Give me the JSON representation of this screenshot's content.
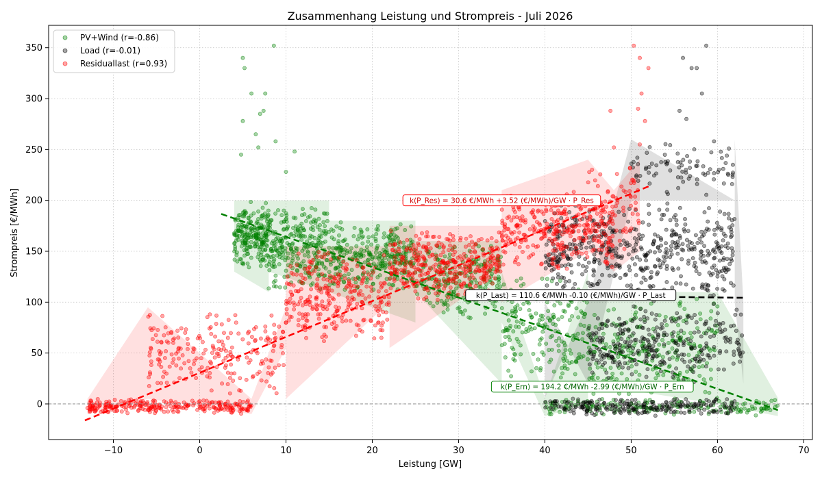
{
  "chart_data": {
    "type": "scatter",
    "title": "Zusammenhang Leistung und Strompreis - Juli 2026",
    "xlabel": "Leistung [GW]",
    "ylabel": "Strompreis [€/MWh]",
    "xlim": [
      -17.5,
      71.0
    ],
    "ylim": [
      -35,
      372
    ],
    "xticks": [
      -10,
      0,
      10,
      20,
      30,
      40,
      50,
      60,
      70
    ],
    "yticks": [
      0,
      50,
      100,
      150,
      200,
      250,
      300,
      350
    ],
    "xtick_labels": [
      "−10",
      "0",
      "10",
      "20",
      "30",
      "40",
      "50",
      "60",
      "70"
    ],
    "ytick_labels": [
      "0",
      "50",
      "100",
      "150",
      "200",
      "250",
      "300",
      "350"
    ],
    "grid": true,
    "legend_position": "top-left",
    "zero_line": 0,
    "series": [
      {
        "name": "PV+Wind (r=-0.86)",
        "color": "#008000",
        "clusters": [
          {
            "x": [
              4,
              8
            ],
            "y": [
              130,
              200
            ],
            "n": 220
          },
          {
            "x": [
              8,
              15
            ],
            "y": [
              110,
              200
            ],
            "n": 260
          },
          {
            "x": [
              15,
              25
            ],
            "y": [
              110,
              180
            ],
            "n": 300
          },
          {
            "x": [
              25,
              35
            ],
            "y": [
              80,
              160
            ],
            "n": 220
          },
          {
            "x": [
              35,
              45
            ],
            "y": [
              20,
              130
            ],
            "n": 200
          },
          {
            "x": [
              45,
              60
            ],
            "y": [
              0,
              110
            ],
            "n": 250
          },
          {
            "x": [
              40,
              67
            ],
            "y": [
              -12,
              6
            ],
            "n": 180
          }
        ],
        "outliers": [
          [
            5,
            340
          ],
          [
            5.2,
            330
          ],
          [
            8.6,
            352
          ],
          [
            6,
            305
          ],
          [
            7.6,
            305
          ],
          [
            7,
            285
          ],
          [
            7.4,
            288
          ],
          [
            5,
            278
          ],
          [
            6.5,
            265
          ],
          [
            8.8,
            258
          ],
          [
            6.8,
            252
          ],
          [
            11,
            248
          ],
          [
            10,
            228
          ],
          [
            4.8,
            245
          ]
        ],
        "fit": {
          "x": [
            2.5,
            67
          ],
          "y": [
            186.7,
            -6.1
          ]
        },
        "fit_label": "k(P_Ern) = 194.2 €/MWh -2.99 (€/MWh)/GW · P_Ern",
        "fit_label_pos": [
          45.5,
          17
        ]
      },
      {
        "name": "Load (r=-0.01)",
        "color": "#000000",
        "clusters": [
          {
            "x": [
              40,
              62
            ],
            "y": [
              100,
              200
            ],
            "n": 500
          },
          {
            "x": [
              45,
              63
            ],
            "y": [
              20,
              100
            ],
            "n": 300
          },
          {
            "x": [
              40,
              62
            ],
            "y": [
              -12,
              6
            ],
            "n": 220
          },
          {
            "x": [
              50,
              62
            ],
            "y": [
              200,
              260
            ],
            "n": 80
          }
        ],
        "outliers": [
          [
            56,
            340
          ],
          [
            58.7,
            352
          ],
          [
            57,
            330
          ],
          [
            57.6,
            330
          ],
          [
            55.6,
            288
          ],
          [
            58.2,
            305
          ],
          [
            59.6,
            258
          ],
          [
            56.4,
            280
          ]
        ],
        "fit": {
          "x": [
            40,
            63
          ],
          "y": [
            106.6,
            104.3
          ]
        },
        "fit_label": "k(P_Last) = 110.6 €/MWh -0.10 (€/MWh)/GW · P_Last",
        "fit_label_pos": [
          43,
          107
        ]
      },
      {
        "name": "Residuallast (r=0.93)",
        "color": "#ff0000",
        "clusters": [
          {
            "x": [
              -13,
              6
            ],
            "y": [
              -10,
              5
            ],
            "n": 260
          },
          {
            "x": [
              -6,
              10
            ],
            "y": [
              5,
              95
            ],
            "n": 220
          },
          {
            "x": [
              10,
              22
            ],
            "y": [
              55,
              155
            ],
            "n": 280
          },
          {
            "x": [
              22,
              35
            ],
            "y": [
              100,
              175
            ],
            "n": 360
          },
          {
            "x": [
              35,
              48
            ],
            "y": [
              130,
              210
            ],
            "n": 300
          },
          {
            "x": [
              45,
              51
            ],
            "y": [
              150,
              240
            ],
            "n": 70
          }
        ],
        "outliers": [
          [
            50.3,
            352
          ],
          [
            51,
            340
          ],
          [
            52,
            330
          ],
          [
            51.2,
            305
          ],
          [
            50.8,
            290
          ],
          [
            51.6,
            278
          ],
          [
            48,
            252
          ],
          [
            51,
            255
          ],
          [
            47.6,
            288
          ]
        ],
        "fit": {
          "x": [
            -13.3,
            52.2
          ],
          "y": [
            -16.2,
            214.4
          ]
        },
        "fit_label": "k(P_Res) = 30.6 €/MWh +3.52 (€/MWh)/GW · P_Res",
        "fit_label_pos": [
          35,
          200
        ]
      }
    ]
  }
}
